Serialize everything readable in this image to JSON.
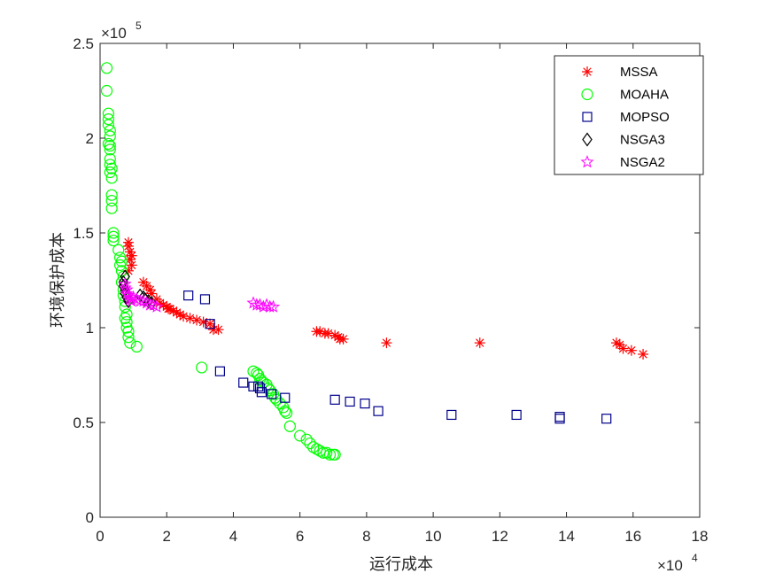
{
  "chart_data": {
    "type": "scatter",
    "title": "",
    "xlabel": "运行成本",
    "ylabel": "环境保护成本",
    "x_multiplier": "×10^4",
    "y_multiplier": "×10^5",
    "x_exponent_base": "×10",
    "x_exponent_power": "4",
    "y_exponent_base": "×10",
    "y_exponent_power": "5",
    "xlim": [
      0,
      18
    ],
    "ylim": [
      0,
      2.5
    ],
    "xticks": [
      0,
      2,
      4,
      6,
      8,
      10,
      12,
      14,
      16,
      18
    ],
    "xtick_labels": [
      "0",
      "2",
      "4",
      "6",
      "8",
      "10",
      "12",
      "14",
      "16",
      "18"
    ],
    "yticks": [
      0,
      0.5,
      1,
      1.5,
      2,
      2.5
    ],
    "ytick_labels": [
      "0",
      "0.5",
      "1",
      "1.5",
      "2",
      "2.5"
    ],
    "grid": false,
    "legend_position": "top-right",
    "series": [
      {
        "name": "MSSA",
        "marker": "asterisk",
        "color": "#ff0000",
        "points": [
          [
            0.85,
            1.45
          ],
          [
            0.85,
            1.43
          ],
          [
            0.9,
            1.4
          ],
          [
            0.95,
            1.38
          ],
          [
            0.9,
            1.36
          ],
          [
            0.95,
            1.33
          ],
          [
            0.85,
            1.3
          ],
          [
            1.3,
            1.24
          ],
          [
            1.4,
            1.22
          ],
          [
            1.5,
            1.2
          ],
          [
            1.55,
            1.18
          ],
          [
            1.7,
            1.15
          ],
          [
            1.8,
            1.13
          ],
          [
            1.9,
            1.12
          ],
          [
            2.0,
            1.11
          ],
          [
            2.05,
            1.1
          ],
          [
            2.1,
            1.1
          ],
          [
            2.2,
            1.09
          ],
          [
            2.3,
            1.08
          ],
          [
            2.4,
            1.07
          ],
          [
            2.5,
            1.06
          ],
          [
            2.7,
            1.05
          ],
          [
            2.9,
            1.04
          ],
          [
            3.1,
            1.03
          ],
          [
            3.3,
            1.02
          ],
          [
            3.4,
            0.99
          ],
          [
            3.55,
            0.99
          ],
          [
            6.5,
            0.98
          ],
          [
            6.6,
            0.98
          ],
          [
            6.75,
            0.97
          ],
          [
            6.85,
            0.97
          ],
          [
            7.05,
            0.96
          ],
          [
            7.15,
            0.95
          ],
          [
            7.2,
            0.94
          ],
          [
            7.3,
            0.94
          ],
          [
            8.6,
            0.92
          ],
          [
            11.4,
            0.92
          ],
          [
            15.5,
            0.92
          ],
          [
            15.6,
            0.91
          ],
          [
            15.7,
            0.89
          ],
          [
            15.95,
            0.88
          ],
          [
            16.3,
            0.86
          ]
        ]
      },
      {
        "name": "MOAHA",
        "marker": "circle",
        "color": "#00ff00",
        "points": [
          [
            0.2,
            2.37
          ],
          [
            0.2,
            2.25
          ],
          [
            0.25,
            2.13
          ],
          [
            0.25,
            2.1
          ],
          [
            0.25,
            2.07
          ],
          [
            0.3,
            2.04
          ],
          [
            0.3,
            2.01
          ],
          [
            0.25,
            1.97
          ],
          [
            0.3,
            1.96
          ],
          [
            0.3,
            1.94
          ],
          [
            0.3,
            1.89
          ],
          [
            0.3,
            1.86
          ],
          [
            0.35,
            1.84
          ],
          [
            0.3,
            1.82
          ],
          [
            0.35,
            1.79
          ],
          [
            0.35,
            1.7
          ],
          [
            0.35,
            1.67
          ],
          [
            0.35,
            1.63
          ],
          [
            0.4,
            1.5
          ],
          [
            0.4,
            1.48
          ],
          [
            0.4,
            1.46
          ],
          [
            0.55,
            1.41
          ],
          [
            0.6,
            1.37
          ],
          [
            0.65,
            1.35
          ],
          [
            0.6,
            1.33
          ],
          [
            0.65,
            1.3
          ],
          [
            0.7,
            1.27
          ],
          [
            0.65,
            1.24
          ],
          [
            0.7,
            1.2
          ],
          [
            0.7,
            1.17
          ],
          [
            0.75,
            1.14
          ],
          [
            0.75,
            1.11
          ],
          [
            0.8,
            1.07
          ],
          [
            0.75,
            1.05
          ],
          [
            0.8,
            1.03
          ],
          [
            0.8,
            1.0
          ],
          [
            0.85,
            0.98
          ],
          [
            0.85,
            0.95
          ],
          [
            0.9,
            0.92
          ],
          [
            1.1,
            0.9
          ],
          [
            3.05,
            0.79
          ],
          [
            4.6,
            0.77
          ],
          [
            4.7,
            0.76
          ],
          [
            4.75,
            0.75
          ],
          [
            4.8,
            0.73
          ],
          [
            4.85,
            0.72
          ],
          [
            4.9,
            0.71
          ],
          [
            5.0,
            0.7
          ],
          [
            5.05,
            0.68
          ],
          [
            5.1,
            0.67
          ],
          [
            5.2,
            0.65
          ],
          [
            5.25,
            0.63
          ],
          [
            5.3,
            0.62
          ],
          [
            5.4,
            0.6
          ],
          [
            5.5,
            0.58
          ],
          [
            5.55,
            0.56
          ],
          [
            5.6,
            0.55
          ],
          [
            5.7,
            0.48
          ],
          [
            6.0,
            0.43
          ],
          [
            6.2,
            0.41
          ],
          [
            6.3,
            0.39
          ],
          [
            6.4,
            0.37
          ],
          [
            6.5,
            0.36
          ],
          [
            6.6,
            0.35
          ],
          [
            6.7,
            0.34
          ],
          [
            6.8,
            0.34
          ],
          [
            6.9,
            0.33
          ],
          [
            7.0,
            0.33
          ],
          [
            7.05,
            0.33
          ]
        ]
      },
      {
        "name": "MOPSO",
        "marker": "square",
        "color": "#00008b",
        "points": [
          [
            2.65,
            1.17
          ],
          [
            3.15,
            1.15
          ],
          [
            3.3,
            1.02
          ],
          [
            3.6,
            0.77
          ],
          [
            4.3,
            0.71
          ],
          [
            4.6,
            0.69
          ],
          [
            4.8,
            0.68
          ],
          [
            4.85,
            0.66
          ],
          [
            4.75,
            0.69
          ],
          [
            5.15,
            0.65
          ],
          [
            5.55,
            0.63
          ],
          [
            7.05,
            0.62
          ],
          [
            7.5,
            0.61
          ],
          [
            7.95,
            0.6
          ],
          [
            8.35,
            0.56
          ],
          [
            10.55,
            0.54
          ],
          [
            12.5,
            0.54
          ],
          [
            13.8,
            0.52
          ],
          [
            13.8,
            0.53
          ],
          [
            15.2,
            0.52
          ]
        ]
      },
      {
        "name": "NSGA3",
        "marker": "diamond",
        "color": "#000000",
        "points": [
          [
            0.75,
            1.27
          ],
          [
            0.7,
            1.24
          ],
          [
            0.7,
            1.22
          ],
          [
            0.75,
            1.2
          ],
          [
            0.75,
            1.18
          ],
          [
            0.8,
            1.16
          ],
          [
            0.85,
            1.14
          ],
          [
            1.2,
            1.17
          ],
          [
            1.3,
            1.16
          ],
          [
            1.35,
            1.15
          ],
          [
            1.45,
            1.14
          ],
          [
            1.55,
            1.13
          ]
        ]
      },
      {
        "name": "NSGA2",
        "marker": "star",
        "color": "#ff00ff",
        "points": [
          [
            0.75,
            1.23
          ],
          [
            0.75,
            1.21
          ],
          [
            0.8,
            1.2
          ],
          [
            0.8,
            1.18
          ],
          [
            0.85,
            1.17
          ],
          [
            0.9,
            1.16
          ],
          [
            0.9,
            1.15
          ],
          [
            0.95,
            1.14
          ],
          [
            1.0,
            1.16
          ],
          [
            1.1,
            1.15
          ],
          [
            1.2,
            1.14
          ],
          [
            1.3,
            1.14
          ],
          [
            1.4,
            1.13
          ],
          [
            1.5,
            1.12
          ],
          [
            1.6,
            1.12
          ],
          [
            1.7,
            1.11
          ],
          [
            4.6,
            1.13
          ],
          [
            4.7,
            1.12
          ],
          [
            4.8,
            1.12
          ],
          [
            4.9,
            1.11
          ],
          [
            5.0,
            1.12
          ],
          [
            5.1,
            1.11
          ],
          [
            5.2,
            1.11
          ]
        ]
      }
    ]
  }
}
